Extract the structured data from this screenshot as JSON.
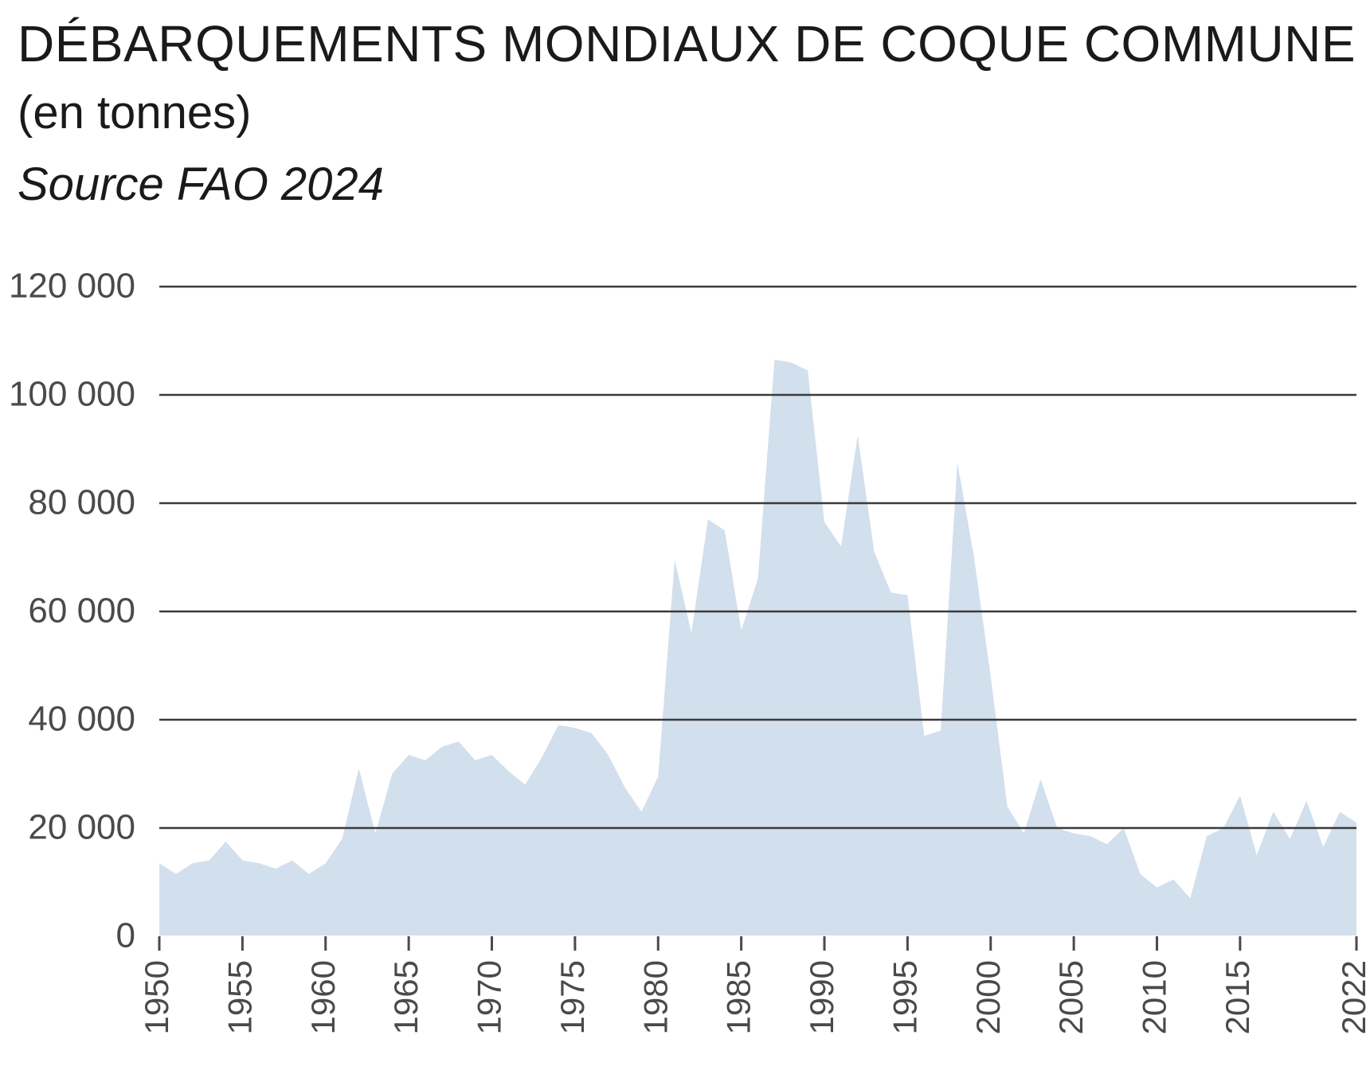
{
  "header": {
    "title": "DÉBARQUEMENTS MONDIAUX DE COQUE COMMUNE",
    "subtitle": "(en tonnes)",
    "source": "Source FAO 2024"
  },
  "colors": {
    "area_fill": "#d2dfec",
    "grid": "#3a3a3a",
    "text": "#1a1a1a",
    "tick_text": "#4a4a4a"
  },
  "chart_data": {
    "type": "area",
    "title": "DÉBARQUEMENTS MONDIAUX DE COQUE COMMUNE",
    "subtitle": "(en tonnes)",
    "xlabel": "",
    "ylabel": "",
    "ylim": [
      0,
      120000
    ],
    "xlim": [
      1950,
      2022
    ],
    "grid": "horizontal",
    "legend": "none",
    "y_ticks": [
      0,
      20000,
      40000,
      60000,
      80000,
      100000,
      120000
    ],
    "y_tick_labels": [
      "0",
      "20 000",
      "40 000",
      "60 000",
      "80 000",
      "100 000",
      "120 000"
    ],
    "x_ticks": [
      1950,
      1955,
      1960,
      1965,
      1970,
      1975,
      1980,
      1985,
      1990,
      1995,
      2000,
      2005,
      2010,
      2015,
      2022
    ],
    "x_tick_labels": [
      "1950",
      "1955",
      "1960",
      "1965",
      "1970",
      "1975",
      "1980",
      "1985",
      "1990",
      "1995",
      "2000",
      "2005",
      "2010",
      "2015",
      "2022"
    ],
    "x": [
      1950,
      1951,
      1952,
      1953,
      1954,
      1955,
      1956,
      1957,
      1958,
      1959,
      1960,
      1961,
      1962,
      1963,
      1964,
      1965,
      1966,
      1967,
      1968,
      1969,
      1970,
      1971,
      1972,
      1973,
      1974,
      1975,
      1976,
      1977,
      1978,
      1979,
      1980,
      1981,
      1982,
      1983,
      1984,
      1985,
      1986,
      1987,
      1988,
      1989,
      1990,
      1991,
      1992,
      1993,
      1994,
      1995,
      1996,
      1997,
      1998,
      1999,
      2000,
      2001,
      2002,
      2003,
      2004,
      2005,
      2006,
      2007,
      2008,
      2009,
      2010,
      2011,
      2012,
      2013,
      2014,
      2015,
      2016,
      2017,
      2018,
      2019,
      2020,
      2021,
      2022
    ],
    "values": [
      13500,
      11500,
      13500,
      14000,
      17500,
      14000,
      13500,
      12500,
      14000,
      11500,
      13500,
      18000,
      31000,
      19000,
      30000,
      33500,
      32500,
      35000,
      36000,
      32500,
      33500,
      30500,
      28000,
      33000,
      39000,
      38500,
      37500,
      33500,
      27500,
      23000,
      29500,
      69500,
      56000,
      77000,
      75000,
      56500,
      66000,
      106500,
      106000,
      104500,
      76500,
      72000,
      92500,
      71000,
      63500,
      63000,
      37000,
      38000,
      87500,
      70000,
      48000,
      24000,
      19000,
      29000,
      20000,
      19000,
      18500,
      17000,
      20000,
      11500,
      9000,
      10500,
      7000,
      18500,
      20000,
      26000,
      15000,
      23000,
      18000,
      25000,
      16500,
      23000,
      21000
    ]
  }
}
